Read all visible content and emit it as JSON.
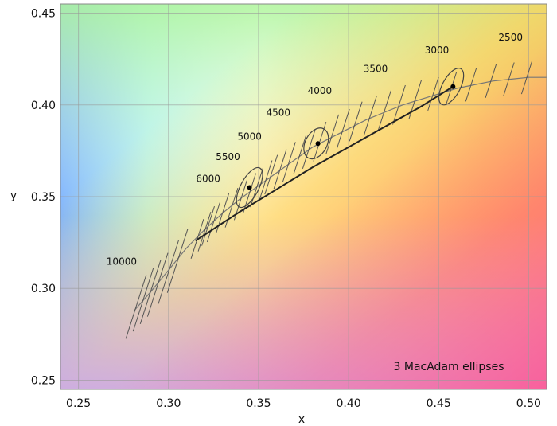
{
  "chart_data": {
    "type": "line",
    "title": "",
    "xlabel": "x",
    "ylabel": "y",
    "xlim": [
      0.24,
      0.51
    ],
    "ylim": [
      0.245,
      0.455
    ],
    "grid": true,
    "x_ticks": [
      "0.25",
      "0.30",
      "0.35",
      "0.40",
      "0.45",
      "0.50"
    ],
    "y_ticks": [
      "0.25",
      "0.30",
      "0.35",
      "0.40",
      "0.45"
    ],
    "background": "CIE 1931 chromaticity diagram colors",
    "planckian_locus": {
      "x": [
        0.281,
        0.29,
        0.3,
        0.31,
        0.32,
        0.33,
        0.34,
        0.35,
        0.36,
        0.37,
        0.38,
        0.39,
        0.4,
        0.41,
        0.42,
        0.43,
        0.44,
        0.45,
        0.46,
        0.47,
        0.48,
        0.49,
        0.5,
        0.51
      ],
      "y": [
        0.288,
        0.298,
        0.31,
        0.322,
        0.332,
        0.341,
        0.349,
        0.356,
        0.363,
        0.37,
        0.377,
        0.382,
        0.387,
        0.392,
        0.396,
        0.4,
        0.403,
        0.406,
        0.409,
        0.411,
        0.413,
        0.414,
        0.415,
        0.415
      ]
    },
    "isotherm_ticks": [
      {
        "x": 0.282,
        "y": 0.29
      },
      {
        "x": 0.286,
        "y": 0.294
      },
      {
        "x": 0.29,
        "y": 0.298
      },
      {
        "x": 0.294,
        "y": 0.302
      },
      {
        "x": 0.3,
        "y": 0.309
      },
      {
        "x": 0.305,
        "y": 0.315
      },
      {
        "x": 0.316,
        "y": 0.327
      },
      {
        "x": 0.32,
        "y": 0.331
      },
      {
        "x": 0.322,
        "y": 0.334
      },
      {
        "x": 0.325,
        "y": 0.336
      },
      {
        "x": 0.33,
        "y": 0.341
      },
      {
        "x": 0.335,
        "y": 0.344
      },
      {
        "x": 0.34,
        "y": 0.348
      },
      {
        "x": 0.345,
        "y": 0.352
      },
      {
        "x": 0.349,
        "y": 0.355
      },
      {
        "x": 0.354,
        "y": 0.359
      },
      {
        "x": 0.357,
        "y": 0.362
      },
      {
        "x": 0.362,
        "y": 0.365
      },
      {
        "x": 0.367,
        "y": 0.369
      },
      {
        "x": 0.373,
        "y": 0.373
      },
      {
        "x": 0.378,
        "y": 0.376
      },
      {
        "x": 0.384,
        "y": 0.38
      },
      {
        "x": 0.391,
        "y": 0.384
      },
      {
        "x": 0.397,
        "y": 0.387
      },
      {
        "x": 0.404,
        "y": 0.391
      },
      {
        "x": 0.412,
        "y": 0.394
      },
      {
        "x": 0.42,
        "y": 0.397
      },
      {
        "x": 0.428,
        "y": 0.4
      },
      {
        "x": 0.437,
        "y": 0.403
      },
      {
        "x": 0.447,
        "y": 0.406
      },
      {
        "x": 0.457,
        "y": 0.409
      },
      {
        "x": 0.468,
        "y": 0.411
      },
      {
        "x": 0.479,
        "y": 0.413
      },
      {
        "x": 0.489,
        "y": 0.414
      },
      {
        "x": 0.499,
        "y": 0.415
      }
    ],
    "cct_labels": [
      {
        "text": "10000",
        "x": 0.274,
        "y": 0.313
      },
      {
        "text": "6000",
        "x": 0.322,
        "y": 0.358
      },
      {
        "text": "5500",
        "x": 0.333,
        "y": 0.37
      },
      {
        "text": "5000",
        "x": 0.345,
        "y": 0.381
      },
      {
        "text": "4500",
        "x": 0.361,
        "y": 0.394
      },
      {
        "text": "4000",
        "x": 0.384,
        "y": 0.406
      },
      {
        "text": "3500",
        "x": 0.415,
        "y": 0.418
      },
      {
        "text": "3000",
        "x": 0.449,
        "y": 0.428
      },
      {
        "text": "2500",
        "x": 0.49,
        "y": 0.435
      }
    ],
    "series": [
      {
        "x": [
          0.315,
          0.34,
          0.36,
          0.38,
          0.4,
          0.42,
          0.44,
          0.458
        ],
        "y": [
          0.326,
          0.342,
          0.354,
          0.366,
          0.377,
          0.388,
          0.399,
          0.41
        ]
      }
    ],
    "points": [
      {
        "x": 0.345,
        "y": 0.355
      },
      {
        "x": 0.383,
        "y": 0.379
      },
      {
        "x": 0.458,
        "y": 0.41
      }
    ],
    "ellipses": [
      {
        "cx": 0.345,
        "cy": 0.355,
        "rx": 0.005,
        "ry": 0.012
      },
      {
        "cx": 0.382,
        "cy": 0.379,
        "rx": 0.006,
        "ry": 0.009
      },
      {
        "cx": 0.457,
        "cy": 0.41,
        "rx": 0.005,
        "ry": 0.011
      }
    ],
    "annotation": "3 MacAdam ellipses"
  }
}
